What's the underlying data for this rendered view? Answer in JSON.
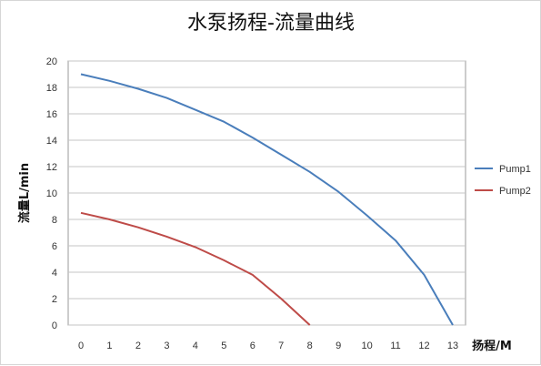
{
  "chart_data": {
    "type": "line",
    "title": "水泵扬程-流量曲线",
    "xlabel": "扬程/M",
    "ylabel": "流量L/min",
    "x_ticks": [
      "0",
      "1",
      "2",
      "3",
      "4",
      "5",
      "6",
      "7",
      "8",
      "9",
      "10",
      "11",
      "12",
      "13"
    ],
    "y_ticks": [
      "0",
      "2",
      "4",
      "6",
      "8",
      "10",
      "12",
      "14",
      "16",
      "18",
      "20"
    ],
    "xlim": [
      0,
      13
    ],
    "ylim": [
      0,
      20
    ],
    "grid": "horizontal",
    "legend_position": "right",
    "series": [
      {
        "name": "Pump1",
        "color": "#4a7ebb",
        "points": [
          [
            0,
            19
          ],
          [
            1,
            18.5
          ],
          [
            2,
            17.9
          ],
          [
            3,
            17.2
          ],
          [
            4,
            16.3
          ],
          [
            5,
            15.4
          ],
          [
            6,
            14.2
          ],
          [
            7,
            12.9
          ],
          [
            8,
            11.6
          ],
          [
            9,
            10.1
          ],
          [
            10,
            8.3
          ],
          [
            11,
            6.4
          ],
          [
            12,
            3.8
          ],
          [
            13,
            0
          ]
        ]
      },
      {
        "name": "Pump2",
        "color": "#be4b48",
        "points": [
          [
            0,
            8.5
          ],
          [
            1,
            8.0
          ],
          [
            2,
            7.4
          ],
          [
            3,
            6.7
          ],
          [
            4,
            5.9
          ],
          [
            5,
            4.9
          ],
          [
            6,
            3.8
          ],
          [
            7,
            2.0
          ],
          [
            8,
            0
          ]
        ]
      }
    ]
  }
}
